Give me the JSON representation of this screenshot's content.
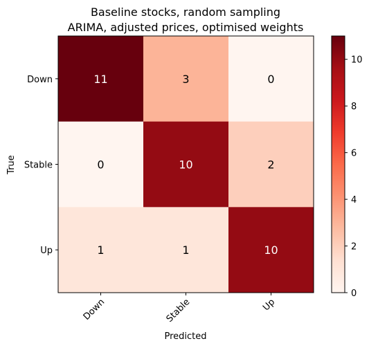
{
  "chart_data": {
    "type": "heatmap",
    "title_lines": [
      "Baseline stocks, random sampling",
      "ARIMA, adjusted prices, optimised weights"
    ],
    "xlabel": "Predicted",
    "ylabel": "True",
    "x_categories": [
      "Down",
      "Stable",
      "Up"
    ],
    "y_categories": [
      "Down",
      "Stable",
      "Up"
    ],
    "values": [
      [
        11,
        3,
        0
      ],
      [
        0,
        10,
        2
      ],
      [
        1,
        1,
        10
      ]
    ],
    "colormap": "Reds",
    "vmin": 0,
    "vmax": 11,
    "colorbar_ticks": [
      0,
      2,
      4,
      6,
      8,
      10
    ],
    "label_color_dark_bg": "#ffffff",
    "label_color_light_bg": "#000000"
  }
}
